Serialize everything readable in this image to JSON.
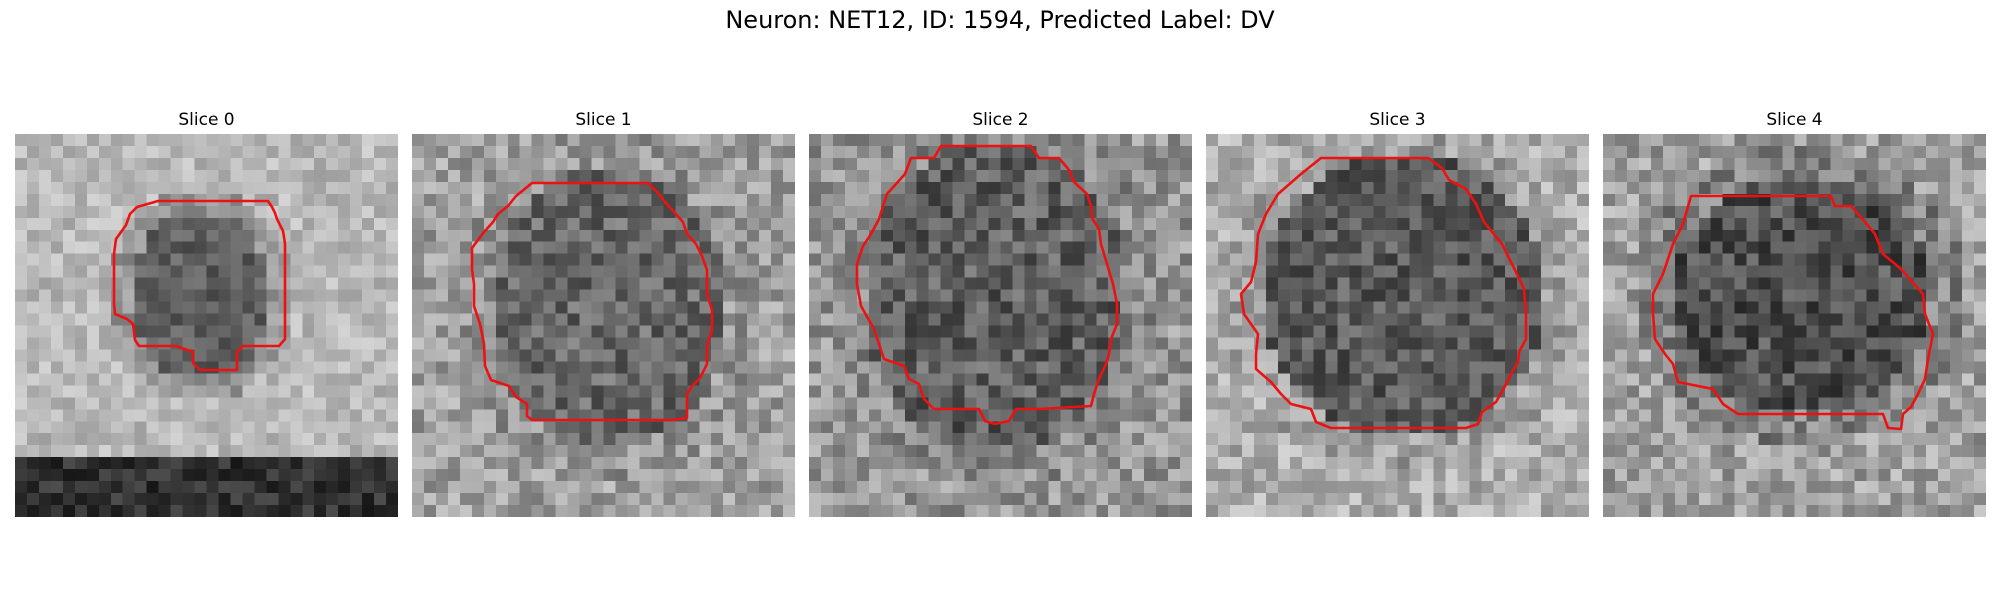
{
  "title": "Neuron: NET12, ID: 1594, Predicted Label: DV",
  "colors": {
    "contour": "#ee1111"
  },
  "panels": [
    {
      "label": "Slice 0"
    },
    {
      "label": "Slice 1"
    },
    {
      "label": "Slice 2"
    },
    {
      "label": "Slice 3"
    },
    {
      "label": "Slice 4"
    }
  ]
}
